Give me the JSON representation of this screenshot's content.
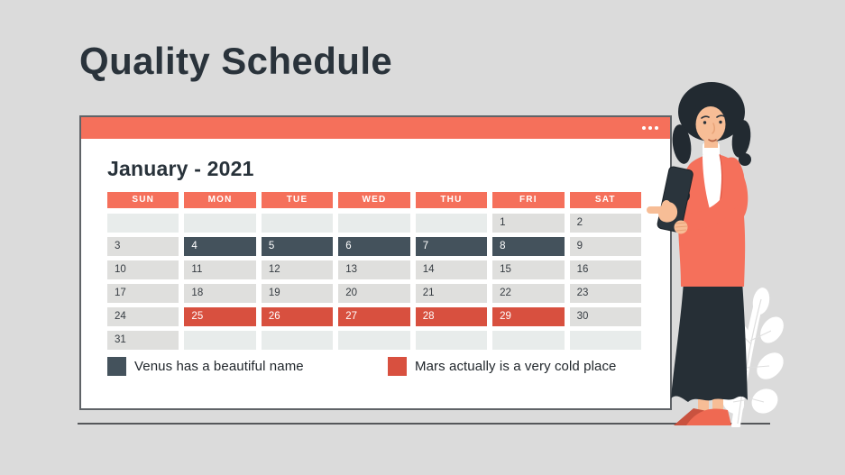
{
  "page": {
    "title": "Quality Schedule"
  },
  "window": {
    "menu_icon": "ellipsis-dots",
    "month_title": "January - 2021"
  },
  "calendar": {
    "weekdays": [
      "SUN",
      "MON",
      "TUE",
      "WED",
      "THU",
      "FRI",
      "SAT"
    ],
    "rows": [
      [
        "",
        "",
        "",
        "",
        "",
        "1",
        "2"
      ],
      [
        "3",
        "4",
        "5",
        "6",
        "7",
        "8",
        "9"
      ],
      [
        "10",
        "11",
        "12",
        "13",
        "14",
        "15",
        "16"
      ],
      [
        "17",
        "18",
        "19",
        "20",
        "21",
        "22",
        "23"
      ],
      [
        "24",
        "25",
        "26",
        "27",
        "28",
        "29",
        "30"
      ],
      [
        "31",
        "",
        "",
        "",
        "",
        "",
        ""
      ]
    ],
    "highlights": {
      "dark_days": [
        "4",
        "5",
        "6",
        "7",
        "8"
      ],
      "red_days": [
        "25",
        "26",
        "27",
        "28",
        "29"
      ]
    }
  },
  "legend": {
    "items": [
      {
        "label": "Venus has a beautiful name",
        "color": "#44525C"
      },
      {
        "label": "Mars actually is a very cold place",
        "color": "#D8503F"
      }
    ]
  },
  "colors": {
    "background": "#DBDBDB",
    "accent_coral": "#F5705B",
    "dark_slate": "#44525C",
    "highlight_red": "#D8503F",
    "day_cell": "#DFDFDD",
    "empty_cell": "#E8ECEB",
    "ink": "#2A333B"
  },
  "illustration": {
    "name": "woman-pointing-with-tablet",
    "decor": "white-leaf"
  }
}
